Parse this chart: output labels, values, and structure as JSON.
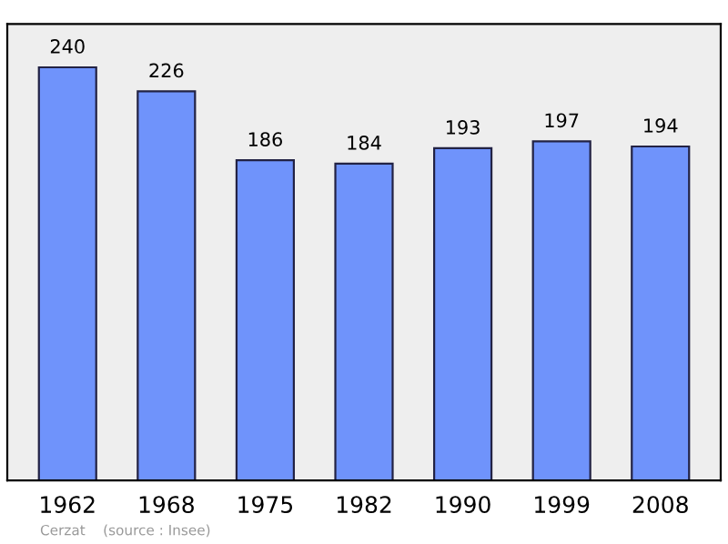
{
  "chart_data": {
    "type": "bar",
    "categories": [
      "1962",
      "1968",
      "1975",
      "1982",
      "1990",
      "1999",
      "2008"
    ],
    "values": [
      240,
      226,
      186,
      184,
      193,
      197,
      194
    ],
    "color": "#6f93fb",
    "data_labels": true,
    "grid": false,
    "legend": false,
    "annotations": [
      "Cerzat    (source : Insee)"
    ]
  }
}
